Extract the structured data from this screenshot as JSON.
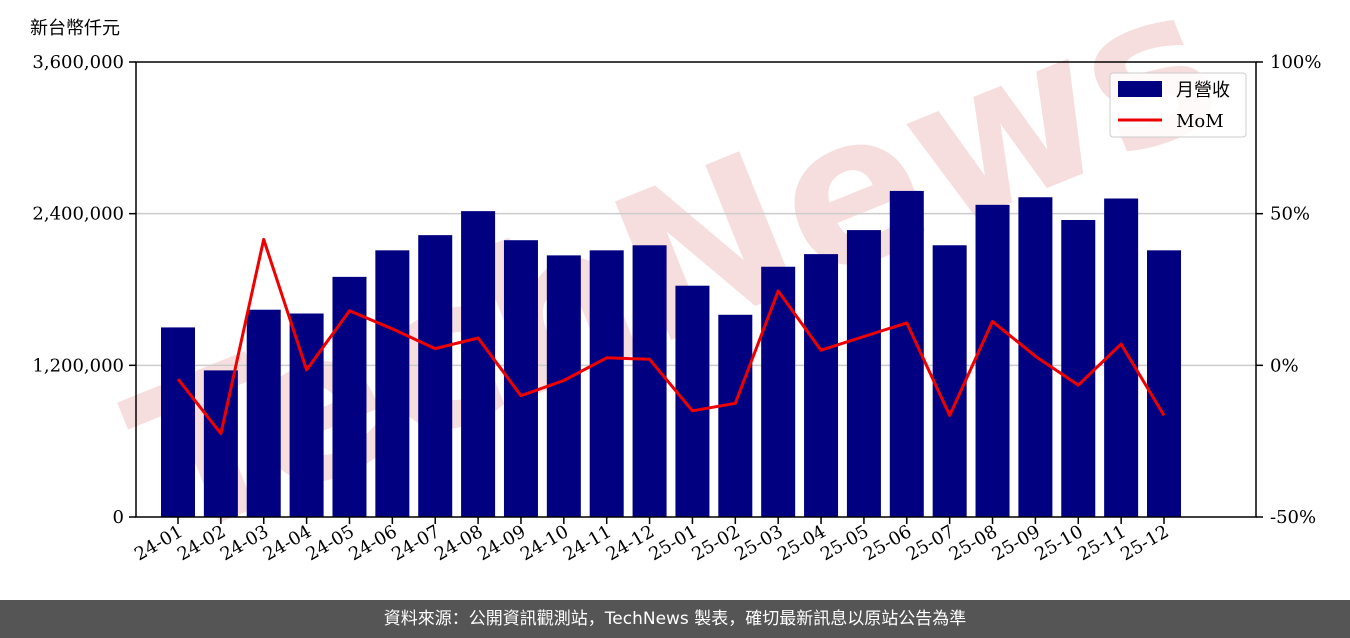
{
  "unit_label": "新台幣仟元",
  "footer_text": "資料來源：公開資訊觀測站，TechNews 製表，確切最新訊息以原站公告為準",
  "watermark_text": "TechNews",
  "colors": {
    "bar": "#000080",
    "line": "#ee0000",
    "grid": "#cccccc",
    "watermark": "#f2c4c4",
    "footer_bg": "#555555"
  },
  "chart_data": {
    "type": "bar",
    "categories": [
      "24-01",
      "24-02",
      "24-03",
      "24-04",
      "24-05",
      "24-06",
      "24-07",
      "24-08",
      "24-09",
      "24-10",
      "24-11",
      "24-12",
      "25-01",
      "25-02",
      "25-03",
      "25-04",
      "25-05",
      "25-06",
      "25-07",
      "25-08",
      "25-09",
      "25-10",
      "25-11",
      "25-12"
    ],
    "series": [
      {
        "name": "月營收",
        "type": "bar",
        "axis": "left",
        "values": [
          1500000,
          1160000,
          1640000,
          1610000,
          1900000,
          2110000,
          2230000,
          2420000,
          2190000,
          2070000,
          2110000,
          2150000,
          1830000,
          1600000,
          1980000,
          2080000,
          2270000,
          2580000,
          2150000,
          2470000,
          2530000,
          2350000,
          2520000,
          2110000
        ]
      },
      {
        "name": "MoM",
        "type": "line",
        "axis": "right",
        "values": [
          -4.5,
          -22.5,
          41.5,
          -1.5,
          18.0,
          12.0,
          5.5,
          9.0,
          -10.0,
          -5.0,
          2.5,
          2.0,
          -15.0,
          -12.5,
          24.5,
          5.0,
          9.5,
          14.0,
          -16.5,
          14.5,
          3.0,
          -6.5,
          7.0,
          -16.5
        ]
      }
    ],
    "y_left": {
      "range": [
        0,
        3600000
      ],
      "ticks": [
        0,
        1200000,
        2400000,
        3600000
      ],
      "tick_labels": [
        "0",
        "1,200,000",
        "2,400,000",
        "3,600,000"
      ]
    },
    "y_right": {
      "range": [
        -50,
        100
      ],
      "ticks": [
        -50,
        0,
        50,
        100
      ],
      "tick_labels": [
        "-50%",
        "0%",
        "50%",
        "100%"
      ]
    },
    "grid": "horizontal",
    "legend": "top-right"
  }
}
